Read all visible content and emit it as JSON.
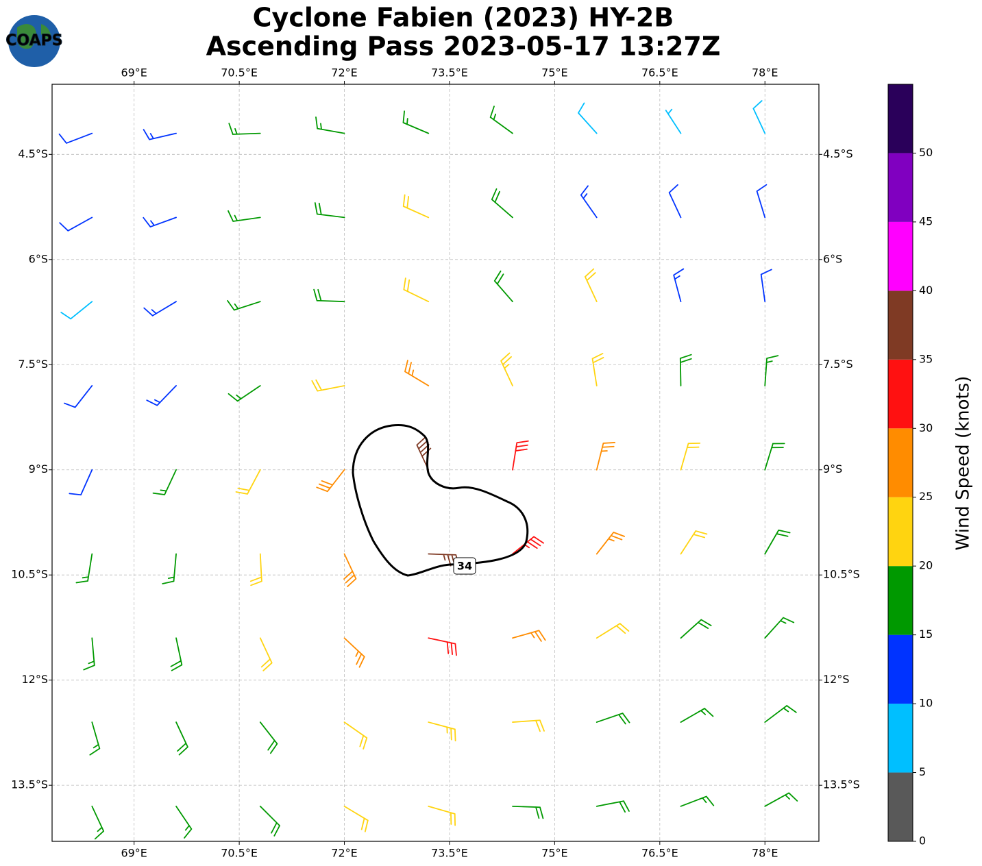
{
  "chart_data": {
    "type": "barbs",
    "title": "Cyclone Fabien (2023) HY-2B",
    "subtitle": "Ascending Pass 2023-05-17 13:27Z",
    "logo": "COAPS",
    "xlim": [
      67.83,
      78.77
    ],
    "ylim": [
      -14.3,
      -3.5
    ],
    "xticks": [
      {
        "value": 69,
        "label": "69°E"
      },
      {
        "value": 70.5,
        "label": "70.5°E"
      },
      {
        "value": 72,
        "label": "72°E"
      },
      {
        "value": 73.5,
        "label": "73.5°E"
      },
      {
        "value": 75,
        "label": "75°E"
      },
      {
        "value": 76.5,
        "label": "76.5°E"
      },
      {
        "value": 78,
        "label": "78°E"
      }
    ],
    "yticks": [
      {
        "value": -4.5,
        "label": "4.5°S"
      },
      {
        "value": -6,
        "label": "6°S"
      },
      {
        "value": -7.5,
        "label": "7.5°S"
      },
      {
        "value": -9,
        "label": "9°S"
      },
      {
        "value": -10.5,
        "label": "10.5°S"
      },
      {
        "value": -12,
        "label": "12°S"
      },
      {
        "value": -13.5,
        "label": "13.5°S"
      }
    ],
    "grid": true,
    "x": [
      68.4,
      69.6,
      70.8,
      72.0,
      73.2,
      74.4,
      75.6,
      76.8,
      78.0
    ],
    "y": [
      -4.2,
      -5.4,
      -6.6,
      -7.8,
      -9.0,
      -10.2,
      -11.4,
      -12.6,
      -13.8
    ],
    "speed": [
      [
        12,
        13,
        15,
        17,
        17,
        16,
        8,
        7,
        8
      ],
      [
        12,
        13,
        16,
        18,
        21,
        18,
        13,
        12,
        11
      ],
      [
        8,
        13,
        17,
        19,
        22,
        19,
        21,
        13,
        12
      ],
      [
        11,
        13,
        17,
        22,
        27,
        23,
        21,
        18,
        16
      ],
      [
        12,
        16,
        21,
        28,
        38,
        32,
        27,
        22,
        18
      ],
      [
        15,
        17,
        22,
        28,
        37,
        33,
        26,
        21,
        18
      ],
      [
        17,
        18,
        22,
        26,
        31,
        26,
        22,
        19,
        17
      ],
      [
        17,
        18,
        19,
        22,
        23,
        21,
        19,
        17,
        17
      ],
      [
        16,
        17,
        18,
        20,
        21,
        19,
        18,
        17,
        16
      ]
    ],
    "direction": [
      [
        249,
        257,
        268,
        280,
        293,
        306,
        318,
        327,
        335
      ],
      [
        241,
        250,
        262,
        277,
        294,
        311,
        325,
        335,
        343
      ],
      [
        231,
        239,
        252,
        272,
        296,
        319,
        335,
        345,
        352
      ],
      [
        218,
        224,
        236,
        259,
        301,
        335,
        351,
        359,
        4
      ],
      [
        204,
        205,
        208,
        218,
        335,
        9,
        14,
        16,
        17
      ],
      [
        189,
        185,
        177,
        155,
        92,
        51,
        38,
        33,
        30
      ],
      [
        175,
        168,
        155,
        133,
        102,
        74,
        58,
        48,
        42
      ],
      [
        164,
        155,
        142,
        125,
        105,
        86,
        71,
        60,
        53
      ],
      [
        155,
        146,
        135,
        121,
        106,
        92,
        79,
        69,
        61
      ]
    ],
    "contour_level": 34,
    "colorbar": {
      "label": "Wind Speed (knots)",
      "bounds": [
        0,
        5,
        10,
        15,
        20,
        25,
        30,
        35,
        40,
        45,
        50,
        55
      ],
      "colors": [
        "#595959",
        "#00bfff",
        "#0033ff",
        "#009900",
        "#ffd410",
        "#ff8c00",
        "#ff1111",
        "#7f3a24",
        "#ff00ff",
        "#8000c0",
        "#2a005a"
      ],
      "ticks": [
        0,
        5,
        10,
        15,
        20,
        25,
        30,
        35,
        40,
        45,
        50
      ]
    }
  }
}
